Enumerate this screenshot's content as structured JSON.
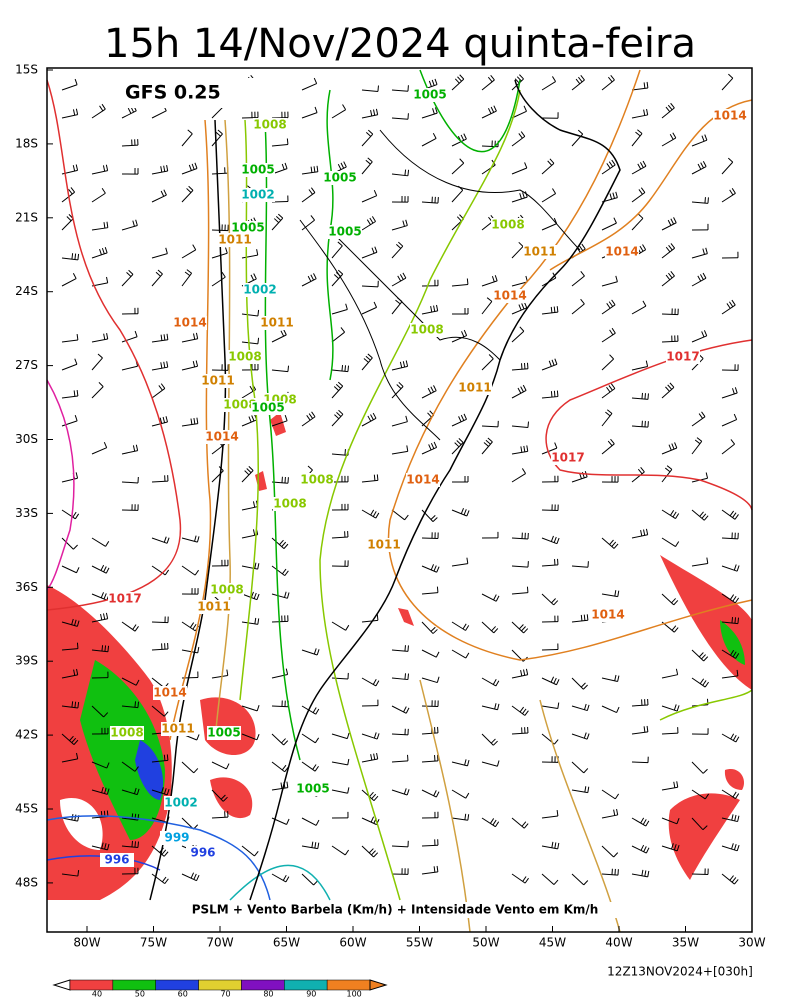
{
  "header": {
    "title": "15h 14/Nov/2024 quinta-feira",
    "model": "GFS 0.25"
  },
  "axes": {
    "latitudes": [
      "15S",
      "18S",
      "21S",
      "24S",
      "27S",
      "30S",
      "33S",
      "36S",
      "39S",
      "42S",
      "45S",
      "48S"
    ],
    "longitudes": [
      "80W",
      "75W",
      "70W",
      "65W",
      "60W",
      "55W",
      "50W",
      "45W",
      "40W",
      "35W",
      "30W"
    ]
  },
  "isobar_labels": [
    {
      "value": 1005,
      "color": "#00b000"
    },
    {
      "value": 1008,
      "color": "#88c800"
    },
    {
      "value": 1005,
      "color": "#00b000"
    },
    {
      "value": 1002,
      "color": "#00b0b0"
    },
    {
      "value": 1005,
      "color": "#00b000"
    },
    {
      "value": 1005,
      "color": "#00b000"
    },
    {
      "value": 1005,
      "color": "#00b000"
    },
    {
      "value": 1011,
      "color": "#d08000"
    },
    {
      "value": 1008,
      "color": "#88c800"
    },
    {
      "value": 1011,
      "color": "#d08000"
    },
    {
      "value": 1014,
      "color": "#e06010"
    },
    {
      "value": 1014,
      "color": "#e06010"
    },
    {
      "value": 1014,
      "color": "#e06010"
    },
    {
      "value": 1002,
      "color": "#00b0b0"
    },
    {
      "value": 1014,
      "color": "#e06010"
    },
    {
      "value": 1011,
      "color": "#d08000"
    },
    {
      "value": 1008,
      "color": "#88c800"
    },
    {
      "value": 1008,
      "color": "#88c800"
    },
    {
      "value": 1017,
      "color": "#e03030"
    },
    {
      "value": 1011,
      "color": "#d08000"
    },
    {
      "value": 1011,
      "color": "#d08000"
    },
    {
      "value": 1008,
      "color": "#88c800"
    },
    {
      "value": 1008,
      "color": "#88c800"
    },
    {
      "value": 1005,
      "color": "#00b000"
    },
    {
      "value": 1014,
      "color": "#e06010"
    },
    {
      "value": 1017,
      "color": "#e03030"
    },
    {
      "value": 1008,
      "color": "#88c800"
    },
    {
      "value": 1014,
      "color": "#e06010"
    },
    {
      "value": 1008,
      "color": "#88c800"
    },
    {
      "value": 1011,
      "color": "#d08000"
    },
    {
      "value": 1017,
      "color": "#e03030"
    },
    {
      "value": 1008,
      "color": "#88c800"
    },
    {
      "value": 1011,
      "color": "#d08000"
    },
    {
      "value": 1014,
      "color": "#e06010"
    },
    {
      "value": 1014,
      "color": "#e06010"
    },
    {
      "value": 1008,
      "color": "#88c800"
    },
    {
      "value": 1011,
      "color": "#d08000"
    },
    {
      "value": 1005,
      "color": "#00b000"
    },
    {
      "value": 1005,
      "color": "#00b000"
    },
    {
      "value": 1002,
      "color": "#00b0b0"
    },
    {
      "value": 999,
      "color": "#00a0e0"
    },
    {
      "value": 996,
      "color": "#2040e0"
    },
    {
      "value": 996,
      "color": "#2040e0"
    }
  ],
  "caption": "PSLM + Vento Barbela (Km/h) + Intensidade Vento em Km/h",
  "run": "12Z13NOV2024+[030h]",
  "colorbar": {
    "ticks": [
      40,
      50,
      60,
      70,
      80,
      90,
      100
    ],
    "colors": [
      "#f04040",
      "#10c010",
      "#2040e0",
      "#e0d030",
      "#8010c0",
      "#10b0b0",
      "#f08020"
    ]
  }
}
